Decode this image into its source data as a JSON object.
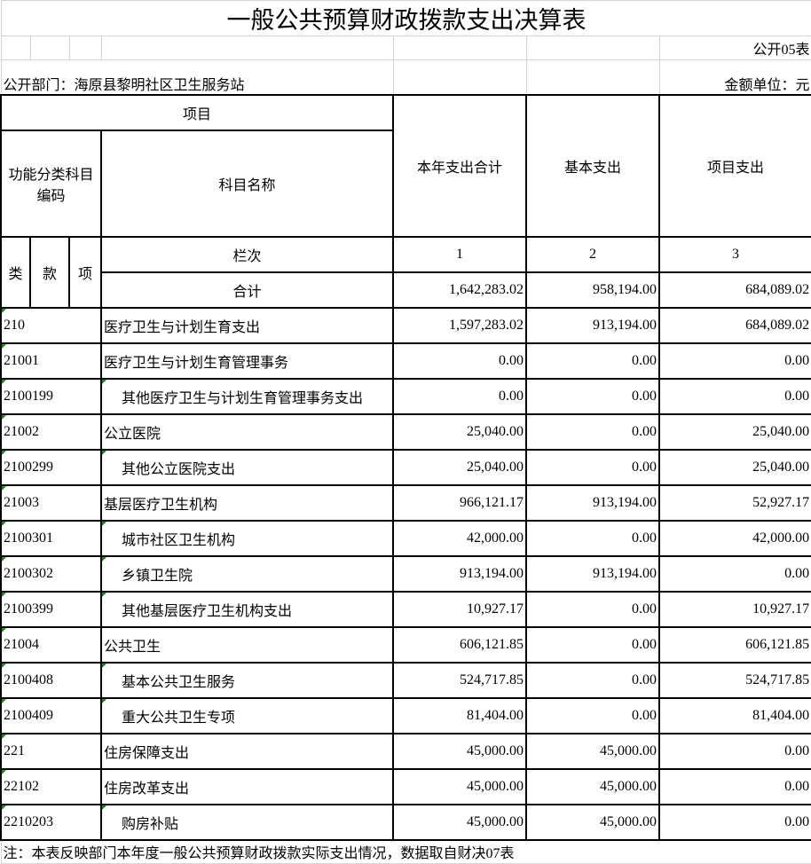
{
  "title": "一般公共预算财政拨款支出决算表",
  "table_no": "公开05表",
  "department": "公开部门：海原县黎明社区卫生服务站",
  "unit": "金额单位：元",
  "header": {
    "item": "项目",
    "code": "功能分类科目编码",
    "name": "科目名称",
    "total": "本年支出合计",
    "basic": "基本支出",
    "project": "项目支出",
    "lei": "类",
    "kuan": "款",
    "xiang": "项",
    "col_index": "栏次",
    "col1": "1",
    "col2": "2",
    "col3": "3",
    "sum_label": "合计",
    "sum_total": "1,642,283.02",
    "sum_basic": "958,194.00",
    "sum_project": "684,089.02"
  },
  "rows": [
    {
      "code": "210",
      "name": "医疗卫生与计划生育支出",
      "total": "1,597,283.02",
      "basic": "913,194.00",
      "project": "684,089.02",
      "indent": false
    },
    {
      "code": "21001",
      "name": "医疗卫生与计划生育管理事务",
      "total": "0.00",
      "basic": "0.00",
      "project": "0.00",
      "indent": false
    },
    {
      "code": "2100199",
      "name": "其他医疗卫生与计划生育管理事务支出",
      "total": "0.00",
      "basic": "0.00",
      "project": "0.00",
      "indent": true
    },
    {
      "code": "21002",
      "name": "公立医院",
      "total": "25,040.00",
      "basic": "0.00",
      "project": "25,040.00",
      "indent": false
    },
    {
      "code": "2100299",
      "name": "其他公立医院支出",
      "total": "25,040.00",
      "basic": "0.00",
      "project": "25,040.00",
      "indent": true
    },
    {
      "code": "21003",
      "name": "基层医疗卫生机构",
      "total": "966,121.17",
      "basic": "913,194.00",
      "project": "52,927.17",
      "indent": false
    },
    {
      "code": "2100301",
      "name": "城市社区卫生机构",
      "total": "42,000.00",
      "basic": "0.00",
      "project": "42,000.00",
      "indent": true
    },
    {
      "code": "2100302",
      "name": "乡镇卫生院",
      "total": "913,194.00",
      "basic": "913,194.00",
      "project": "0.00",
      "indent": true
    },
    {
      "code": "2100399",
      "name": "其他基层医疗卫生机构支出",
      "total": "10,927.17",
      "basic": "0.00",
      "project": "10,927.17",
      "indent": true
    },
    {
      "code": "21004",
      "name": "公共卫生",
      "total": "606,121.85",
      "basic": "0.00",
      "project": "606,121.85",
      "indent": false
    },
    {
      "code": "2100408",
      "name": "基本公共卫生服务",
      "total": "524,717.85",
      "basic": "0.00",
      "project": "524,717.85",
      "indent": true
    },
    {
      "code": "2100409",
      "name": "重大公共卫生专项",
      "total": "81,404.00",
      "basic": "0.00",
      "project": "81,404.00",
      "indent": true
    },
    {
      "code": "221",
      "name": "住房保障支出",
      "total": "45,000.00",
      "basic": "45,000.00",
      "project": "0.00",
      "indent": false
    },
    {
      "code": "22102",
      "name": "住房改革支出",
      "total": "45,000.00",
      "basic": "45,000.00",
      "project": "0.00",
      "indent": false
    },
    {
      "code": "2210203",
      "name": "购房补贴",
      "total": "45,000.00",
      "basic": "45,000.00",
      "project": "0.00",
      "indent": true
    }
  ],
  "note": "注：本表反映部门本年度一般公共预算财政拨款实际支出情况，数据取自财决07表"
}
